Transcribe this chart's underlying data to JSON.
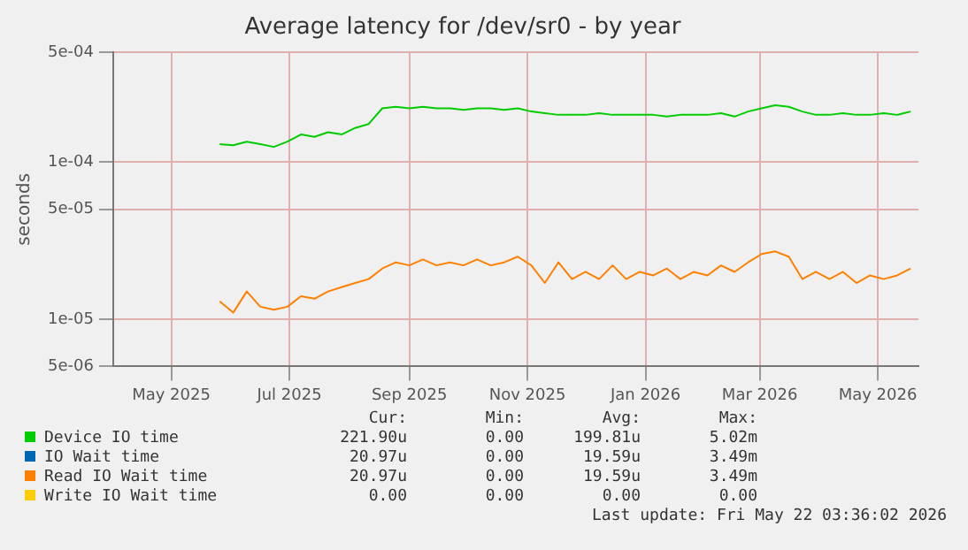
{
  "chart_data": {
    "type": "line",
    "title": "Average latency for /dev/sr0 - by year",
    "ylabel": "seconds",
    "log": "y",
    "grid": true,
    "legend": "bottom",
    "marker": "none",
    "line_style": "solid",
    "xlim": [
      "2025-04-01",
      "2026-05-22"
    ],
    "xticks": [
      {
        "value": "2025-05-01",
        "label": "May 2025"
      },
      {
        "value": "2025-07-01",
        "label": "Jul 2025"
      },
      {
        "value": "2025-09-01",
        "label": "Sep 2025"
      },
      {
        "value": "2025-11-01",
        "label": "Nov 2025"
      },
      {
        "value": "2026-01-01",
        "label": "Jan 2026"
      },
      {
        "value": "2026-03-01",
        "label": "Mar 2026"
      },
      {
        "value": "2026-05-01",
        "label": "May 2026"
      }
    ],
    "ylim": [
      5e-06,
      0.0005
    ],
    "yticks": [
      {
        "value": 5e-06,
        "label": "5e-06"
      },
      {
        "value": 1e-05,
        "label": "1e-05"
      },
      {
        "value": 5e-05,
        "label": "5e-05"
      },
      {
        "value": 0.0001,
        "label": "1e-04"
      },
      {
        "value": 0.0005,
        "label": "5e-04"
      }
    ],
    "x": [
      "2025-05-26",
      "2025-06-02",
      "2025-06-09",
      "2025-06-16",
      "2025-06-23",
      "2025-06-30",
      "2025-07-07",
      "2025-07-14",
      "2025-07-21",
      "2025-07-28",
      "2025-08-04",
      "2025-08-11",
      "2025-08-18",
      "2025-08-25",
      "2025-09-01",
      "2025-09-08",
      "2025-09-15",
      "2025-09-22",
      "2025-09-29",
      "2025-10-06",
      "2025-10-13",
      "2025-10-20",
      "2025-10-27",
      "2025-11-03",
      "2025-11-10",
      "2025-11-17",
      "2025-11-24",
      "2025-12-01",
      "2025-12-08",
      "2025-12-15",
      "2025-12-22",
      "2025-12-29",
      "2026-01-05",
      "2026-01-12",
      "2026-01-19",
      "2026-01-26",
      "2026-02-02",
      "2026-02-09",
      "2026-02-16",
      "2026-02-23",
      "2026-03-02",
      "2026-03-09",
      "2026-03-16",
      "2026-03-23",
      "2026-03-30",
      "2026-04-06",
      "2026-04-13",
      "2026-04-20",
      "2026-04-27",
      "2026-05-04",
      "2026-05-11",
      "2026-05-18"
    ],
    "series": [
      {
        "name": "Device IO time",
        "color": "#00cc00",
        "values": [
          0.00013,
          0.000128,
          0.000135,
          0.00013,
          0.000125,
          0.000135,
          0.00015,
          0.000145,
          0.000155,
          0.00015,
          0.000165,
          0.000175,
          0.00022,
          0.000225,
          0.00022,
          0.000225,
          0.00022,
          0.00022,
          0.000215,
          0.00022,
          0.00022,
          0.000215,
          0.00022,
          0.00021,
          0.000205,
          0.0002,
          0.0002,
          0.0002,
          0.000205,
          0.0002,
          0.0002,
          0.0002,
          0.0002,
          0.000195,
          0.0002,
          0.0002,
          0.0002,
          0.000205,
          0.000195,
          0.00021,
          0.00022,
          0.00023,
          0.000225,
          0.00021,
          0.0002,
          0.0002,
          0.000205,
          0.0002,
          0.0002,
          0.000205,
          0.0002,
          0.00021
        ]
      },
      {
        "name": "IO Wait time",
        "color": "#0066b3",
        "values": [
          null,
          null,
          null,
          null,
          null,
          null,
          null,
          null,
          null,
          null,
          null,
          null,
          null,
          null,
          null,
          null,
          null,
          null,
          null,
          null,
          null,
          null,
          null,
          null,
          null,
          null,
          null,
          null,
          null,
          null,
          null,
          null,
          null,
          null,
          null,
          null,
          null,
          null,
          null,
          null,
          null,
          null,
          null,
          null,
          null,
          null,
          null,
          null,
          null,
          null,
          null,
          null
        ]
      },
      {
        "name": "Read IO Wait time",
        "color": "#ff8000",
        "values": [
          1.3e-05,
          1.1e-05,
          1.5e-05,
          1.2e-05,
          1.15e-05,
          1.2e-05,
          1.4e-05,
          1.35e-05,
          1.5e-05,
          1.6e-05,
          1.7e-05,
          1.8e-05,
          2.1e-05,
          2.3e-05,
          2.2e-05,
          2.4e-05,
          2.2e-05,
          2.3e-05,
          2.2e-05,
          2.4e-05,
          2.2e-05,
          2.3e-05,
          2.5e-05,
          2.2e-05,
          1.7e-05,
          2.3e-05,
          1.8e-05,
          2e-05,
          1.8e-05,
          2.2e-05,
          1.8e-05,
          2e-05,
          1.9e-05,
          2.1e-05,
          1.8e-05,
          2e-05,
          1.9e-05,
          2.2e-05,
          2e-05,
          2.3e-05,
          2.6e-05,
          2.7e-05,
          2.5e-05,
          1.8e-05,
          2e-05,
          1.8e-05,
          2e-05,
          1.7e-05,
          1.9e-05,
          1.8e-05,
          1.9e-05,
          2.1e-05
        ]
      },
      {
        "name": "Write IO Wait time",
        "color": "#ffcc00",
        "values": [
          null,
          null,
          null,
          null,
          null,
          null,
          null,
          null,
          null,
          null,
          null,
          null,
          null,
          null,
          null,
          null,
          null,
          null,
          null,
          null,
          null,
          null,
          null,
          null,
          null,
          null,
          null,
          null,
          null,
          null,
          null,
          null,
          null,
          null,
          null,
          null,
          null,
          null,
          null,
          null,
          null,
          null,
          null,
          null,
          null,
          null,
          null,
          null,
          null,
          null,
          null,
          null
        ]
      }
    ],
    "annotations": [
      "Cur:",
      "Min:",
      "Avg:",
      "Max:",
      "221.90u",
      "0.00",
      "199.81u",
      "5.02m",
      "20.97u",
      "0.00",
      "19.59u",
      "3.49m",
      "20.97u",
      "0.00",
      "19.59u",
      "3.49m",
      "0.00",
      "0.00",
      "0.00",
      "0.00",
      "Last update: Fri May 22 03:36:02 2026"
    ]
  }
}
